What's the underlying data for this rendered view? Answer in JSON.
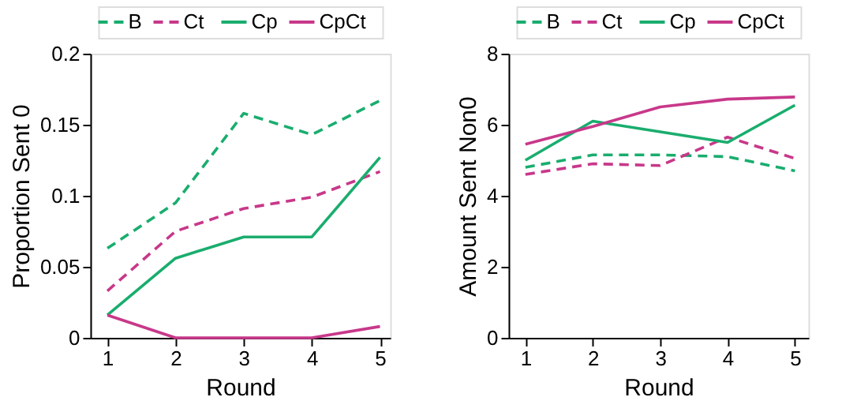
{
  "chart_data": [
    {
      "type": "line",
      "xlabel": "Round",
      "ylabel": "Proportion Sent 0",
      "x": [
        1,
        2,
        3,
        4,
        5
      ],
      "xlim": [
        0.75,
        5.15
      ],
      "xticks": [
        1,
        2,
        3,
        4,
        5
      ],
      "ylim": [
        0,
        0.2
      ],
      "yticks": [
        0,
        0.05,
        0.1,
        0.15,
        0.2
      ],
      "grid": false,
      "legend": "top",
      "marker": "none",
      "series": [
        {
          "name": "B",
          "color": "#1aad6e",
          "line_style": "dashed",
          "values": [
            0.063,
            0.095,
            0.158,
            0.143,
            0.167
          ]
        },
        {
          "name": "Ct",
          "color": "#c8388a",
          "line_style": "dashed",
          "values": [
            0.033,
            0.075,
            0.091,
            0.099,
            0.117
          ]
        },
        {
          "name": "Cp",
          "color": "#1aad6e",
          "line_style": "solid",
          "values": [
            0.016,
            0.056,
            0.071,
            0.071,
            0.127
          ]
        },
        {
          "name": "CpCt",
          "color": "#c8388a",
          "line_style": "solid",
          "values": [
            0.016,
            0,
            0,
            0,
            0.008
          ]
        }
      ]
    },
    {
      "type": "line",
      "xlabel": "Round",
      "ylabel": "Amount Sent Non0",
      "x": [
        1,
        2,
        3,
        4,
        5
      ],
      "xlim": [
        0.75,
        5.2
      ],
      "xticks": [
        1,
        2,
        3,
        4,
        5
      ],
      "ylim": [
        0,
        8
      ],
      "yticks": [
        0,
        2,
        4,
        6,
        8
      ],
      "grid": false,
      "legend": "top",
      "marker": "none",
      "series": [
        {
          "name": "B",
          "color": "#1aad6e",
          "line_style": "dashed",
          "values": [
            4.8,
            5.15,
            5.15,
            5.1,
            4.7
          ]
        },
        {
          "name": "Ct",
          "color": "#c8388a",
          "line_style": "dashed",
          "values": [
            4.6,
            4.9,
            4.85,
            5.65,
            5.05
          ]
        },
        {
          "name": "Cp",
          "color": "#1aad6e",
          "line_style": "solid",
          "values": [
            5.0,
            6.1,
            5.8,
            5.5,
            6.55
          ]
        },
        {
          "name": "CpCt",
          "color": "#c8388a",
          "line_style": "solid",
          "values": [
            5.45,
            5.95,
            6.5,
            6.72,
            6.78
          ]
        }
      ]
    }
  ]
}
